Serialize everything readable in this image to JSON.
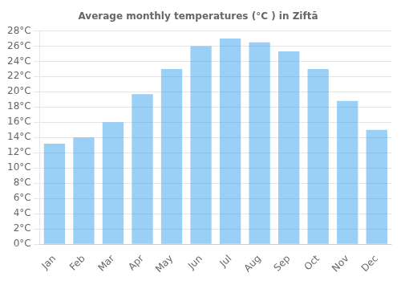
{
  "chart_data": {
    "type": "bar",
    "title": "Average monthly temperatures (°C ) in Ziftā",
    "categories": [
      "Jan",
      "Feb",
      "Mar",
      "Apr",
      "May",
      "Jun",
      "Jul",
      "Aug",
      "Sep",
      "Oct",
      "Nov",
      "Dec"
    ],
    "values": [
      13.2,
      14.0,
      16.0,
      19.7,
      23.0,
      26.0,
      27.0,
      26.5,
      25.3,
      23.0,
      18.8,
      15.0
    ],
    "ylim": [
      0,
      28
    ],
    "yticks": [
      {
        "value": 0,
        "label": "0°C"
      },
      {
        "value": 2,
        "label": "2°C"
      },
      {
        "value": 4,
        "label": "4°C"
      },
      {
        "value": 6,
        "label": "6°C"
      },
      {
        "value": 8,
        "label": "8°C"
      },
      {
        "value": 10,
        "label": "10°C"
      },
      {
        "value": 12,
        "label": "12°C"
      },
      {
        "value": 14,
        "label": "14°C"
      },
      {
        "value": 16,
        "label": "16°C"
      },
      {
        "value": 18,
        "label": "18°C"
      },
      {
        "value": 20,
        "label": "20°C"
      },
      {
        "value": 22,
        "label": "22°C"
      },
      {
        "value": 24,
        "label": "24°C"
      },
      {
        "value": 26,
        "label": "26°C"
      },
      {
        "value": 28,
        "label": "28°C"
      }
    ],
    "grid": true
  }
}
